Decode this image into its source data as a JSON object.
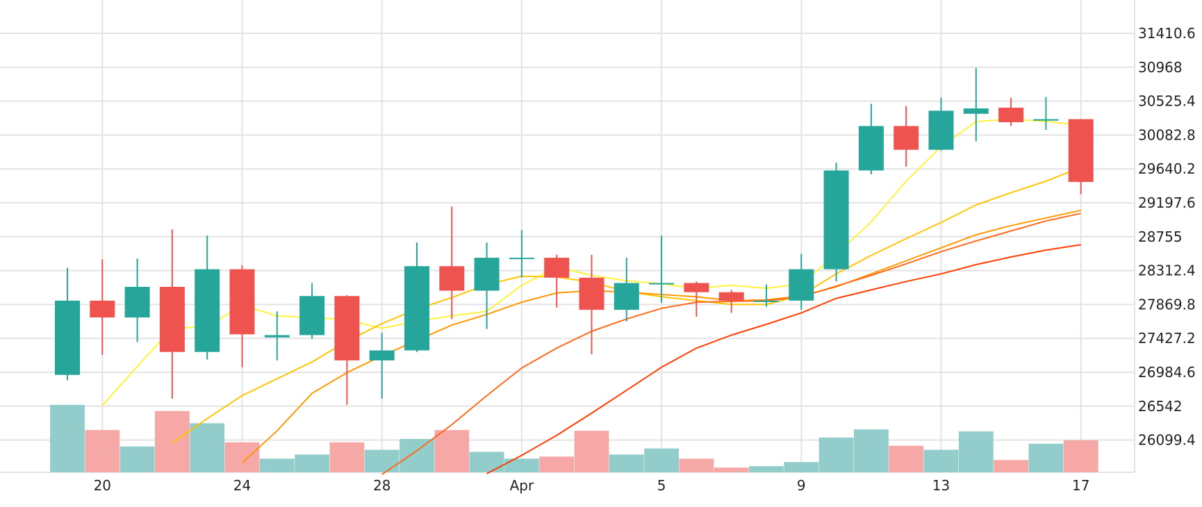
{
  "chart_data": {
    "type": "candlestick",
    "y_ticks": [
      "31410.6",
      "30968",
      "30525.4",
      "30082.8",
      "29640.2",
      "29197.6",
      "28755",
      "28312.4",
      "27869.8",
      "27427.2",
      "26984.6",
      "26542",
      "26099.4"
    ],
    "x_ticks": [
      {
        "label": "20",
        "index": 1
      },
      {
        "label": "24",
        "index": 5
      },
      {
        "label": "28",
        "index": 9
      },
      {
        "label": "Apr",
        "index": 13
      },
      {
        "label": "5",
        "index": 17
      },
      {
        "label": "9",
        "index": 21
      },
      {
        "label": "13",
        "index": 25
      },
      {
        "label": "17",
        "index": 29
      }
    ],
    "ylim": [
      25640,
      31850
    ],
    "colors": {
      "up": "#26a69a",
      "down": "#ef5350",
      "up_volume": "#92cdcb",
      "down_volume": "#f5a8a6"
    },
    "candles": [
      {
        "o": 26950,
        "h": 28350,
        "l": 26880,
        "c": 27920
      },
      {
        "o": 27920,
        "h": 28460,
        "l": 27210,
        "c": 27700
      },
      {
        "o": 27700,
        "h": 28470,
        "l": 27380,
        "c": 28100
      },
      {
        "o": 28100,
        "h": 28850,
        "l": 26640,
        "c": 27250
      },
      {
        "o": 27250,
        "h": 28770,
        "l": 27150,
        "c": 28330
      },
      {
        "o": 28330,
        "h": 28380,
        "l": 27050,
        "c": 27480
      },
      {
        "o": 27440,
        "h": 27780,
        "l": 27140,
        "c": 27470
      },
      {
        "o": 27470,
        "h": 28150,
        "l": 27420,
        "c": 27980
      },
      {
        "o": 27980,
        "h": 27990,
        "l": 26560,
        "c": 27140
      },
      {
        "o": 27140,
        "h": 27500,
        "l": 26640,
        "c": 27270
      },
      {
        "o": 27270,
        "h": 28680,
        "l": 27250,
        "c": 28370
      },
      {
        "o": 28370,
        "h": 29150,
        "l": 27680,
        "c": 28050
      },
      {
        "o": 28050,
        "h": 28680,
        "l": 27550,
        "c": 28480
      },
      {
        "o": 28470,
        "h": 28840,
        "l": 28220,
        "c": 28480
      },
      {
        "o": 28480,
        "h": 28520,
        "l": 27830,
        "c": 28220
      },
      {
        "o": 28220,
        "h": 28520,
        "l": 27220,
        "c": 27800
      },
      {
        "o": 27800,
        "h": 28480,
        "l": 27650,
        "c": 28150
      },
      {
        "o": 28150,
        "h": 28770,
        "l": 27890,
        "c": 28150
      },
      {
        "o": 28150,
        "h": 28170,
        "l": 27710,
        "c": 28030
      },
      {
        "o": 28030,
        "h": 28060,
        "l": 27760,
        "c": 27920
      },
      {
        "o": 27920,
        "h": 28130,
        "l": 27840,
        "c": 27920
      },
      {
        "o": 27920,
        "h": 28530,
        "l": 27800,
        "c": 28330
      },
      {
        "o": 28330,
        "h": 29720,
        "l": 28170,
        "c": 29620
      },
      {
        "o": 29620,
        "h": 30490,
        "l": 29570,
        "c": 30200
      },
      {
        "o": 30200,
        "h": 30460,
        "l": 29670,
        "c": 29890
      },
      {
        "o": 29890,
        "h": 30570,
        "l": 29880,
        "c": 30400
      },
      {
        "o": 30360,
        "h": 30960,
        "l": 30000,
        "c": 30430
      },
      {
        "o": 30440,
        "h": 30570,
        "l": 30200,
        "c": 30250
      },
      {
        "o": 30270,
        "h": 30580,
        "l": 30150,
        "c": 30290
      },
      {
        "o": 30290,
        "h": 30290,
        "l": 29310,
        "c": 29470
      }
    ],
    "volume_relative": [
      0.99,
      0.62,
      0.38,
      0.9,
      0.72,
      0.44,
      0.2,
      0.26,
      0.44,
      0.33,
      0.49,
      0.62,
      0.3,
      0.2,
      0.23,
      0.61,
      0.26,
      0.35,
      0.2,
      0.07,
      0.09,
      0.15,
      0.51,
      0.63,
      0.39,
      0.33,
      0.6,
      0.18,
      0.42,
      0.47
    ],
    "moving_averages": [
      {
        "color": "#fff23a",
        "values": [
          null,
          26550,
          27060,
          27560,
          27580,
          27860,
          27720,
          27700,
          27670,
          27560,
          27650,
          27720,
          27780,
          28120,
          28360,
          28250,
          28180,
          28140,
          28080,
          28120,
          28080,
          28140,
          28520,
          28950,
          29480,
          29930,
          30260,
          30290,
          30260,
          30210
        ]
      },
      {
        "color": "#ffc400",
        "values": [
          null,
          null,
          null,
          26060,
          26380,
          26680,
          26900,
          27120,
          27390,
          27620,
          27810,
          27960,
          28130,
          28240,
          28230,
          28160,
          28040,
          27970,
          27920,
          27870,
          27870,
          27990,
          28270,
          28510,
          28730,
          28940,
          29170,
          29330,
          29480,
          29660
        ]
      },
      {
        "color": "#ff9800",
        "values": [
          null,
          null,
          null,
          null,
          null,
          25800,
          26220,
          26710,
          26980,
          27200,
          27400,
          27600,
          27740,
          27900,
          28020,
          28050,
          28030,
          28000,
          27970,
          27920,
          27930,
          27980,
          28100,
          28270,
          28440,
          28610,
          28780,
          28900,
          29000,
          29100
        ]
      },
      {
        "color": "#ff6a1a",
        "values": [
          null,
          null,
          null,
          null,
          null,
          null,
          null,
          null,
          null,
          25650,
          25960,
          26300,
          26680,
          27040,
          27300,
          27520,
          27680,
          27820,
          27900,
          27910,
          27920,
          27970,
          28110,
          28250,
          28400,
          28560,
          28700,
          28830,
          28960,
          29060
        ]
      },
      {
        "color": "#ff3d00",
        "values": [
          null,
          null,
          null,
          null,
          null,
          null,
          null,
          null,
          null,
          null,
          null,
          null,
          25660,
          25900,
          26160,
          26450,
          26750,
          27050,
          27300,
          27470,
          27610,
          27760,
          27950,
          28060,
          28170,
          28270,
          28390,
          28490,
          28580,
          28650
        ]
      }
    ]
  }
}
